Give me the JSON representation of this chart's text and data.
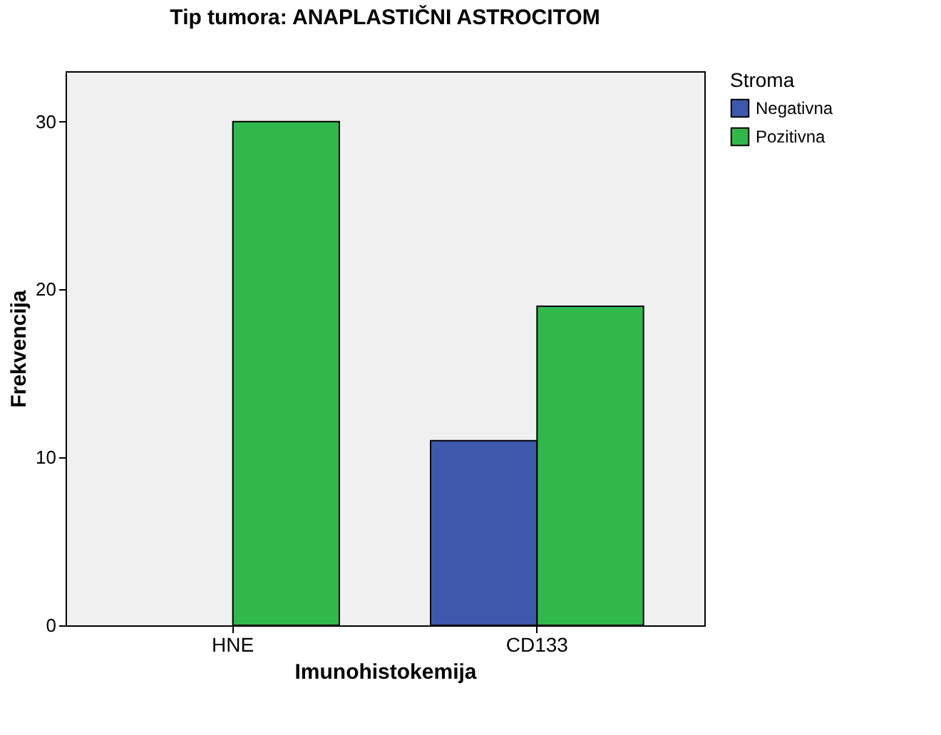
{
  "chart_data": {
    "type": "bar",
    "title": "Tip tumora: ANAPLASTIČNI ASTROCITOM",
    "xlabel": "Imunohistokemija",
    "ylabel": "Frekvencija",
    "legend_title": "Stroma",
    "categories": [
      "HNE",
      "CD133"
    ],
    "series": [
      {
        "name": "Negativna",
        "color": "#3e58ac",
        "values": [
          null,
          11
        ]
      },
      {
        "name": "Pozitivna",
        "color": "#30b84a",
        "values": [
          30,
          19
        ]
      }
    ],
    "ylim": [
      0,
      33
    ],
    "yticks": [
      0,
      10,
      20,
      30
    ],
    "grid": false,
    "legend": "top right"
  }
}
